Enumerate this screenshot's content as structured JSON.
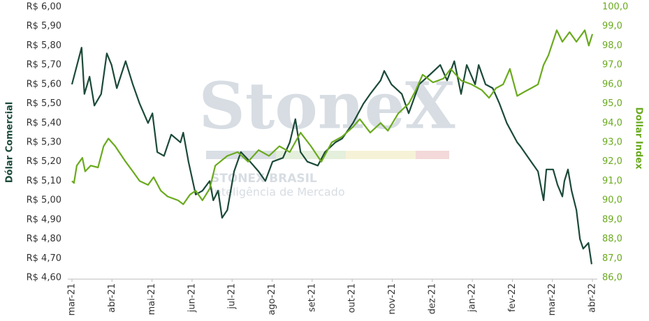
{
  "chart_data": {
    "type": "line",
    "watermark": {
      "logo": "StoneX",
      "brand": "STONEX BRASIL",
      "tagline": "Inteligência de Mercado"
    },
    "y_label": "Dólar Comercial",
    "y2_label": "Dollar Index",
    "xlim": [
      0,
      13
    ],
    "xticks": [
      {
        "value": 0,
        "label": "mar-21"
      },
      {
        "value": 1,
        "label": "abr-21"
      },
      {
        "value": 2,
        "label": "mai-21"
      },
      {
        "value": 3,
        "label": "jun-21"
      },
      {
        "value": 4,
        "label": "jul-21"
      },
      {
        "value": 5,
        "label": "ago-21"
      },
      {
        "value": 6,
        "label": "set-21"
      },
      {
        "value": 7,
        "label": "out-21"
      },
      {
        "value": 8,
        "label": "nov-21"
      },
      {
        "value": 9,
        "label": "dez-21"
      },
      {
        "value": 10,
        "label": "jan-22"
      },
      {
        "value": 11,
        "label": "fev-22"
      },
      {
        "value": 12,
        "label": "mar-22"
      },
      {
        "value": 13,
        "label": "abr-22"
      }
    ],
    "ylim": [
      4.6,
      6.0
    ],
    "yticks": [
      {
        "value": 4.6,
        "label": "R$ 4,60"
      },
      {
        "value": 4.7,
        "label": "R$ 4,70"
      },
      {
        "value": 4.8,
        "label": "R$ 4,80"
      },
      {
        "value": 4.9,
        "label": "R$ 4,90"
      },
      {
        "value": 5.0,
        "label": "R$ 5,00"
      },
      {
        "value": 5.1,
        "label": "R$ 5,10"
      },
      {
        "value": 5.2,
        "label": "R$ 5,20"
      },
      {
        "value": 5.3,
        "label": "R$ 5,30"
      },
      {
        "value": 5.4,
        "label": "R$ 5,40"
      },
      {
        "value": 5.5,
        "label": "R$ 5,50"
      },
      {
        "value": 5.6,
        "label": "R$ 5,60"
      },
      {
        "value": 5.7,
        "label": "R$ 5,70"
      },
      {
        "value": 5.8,
        "label": "R$ 5,80"
      },
      {
        "value": 5.9,
        "label": "R$ 5,90"
      },
      {
        "value": 6.0,
        "label": "R$ 6,00"
      }
    ],
    "y2lim": [
      86,
      100
    ],
    "y2ticks": [
      {
        "value": 86,
        "label": "86,0"
      },
      {
        "value": 87,
        "label": "87,0"
      },
      {
        "value": 88,
        "label": "88,0"
      },
      {
        "value": 89,
        "label": "89,0"
      },
      {
        "value": 90,
        "label": "90,0"
      },
      {
        "value": 91,
        "label": "91,0"
      },
      {
        "value": 92,
        "label": "92,0"
      },
      {
        "value": 93,
        "label": "93,0"
      },
      {
        "value": 94,
        "label": "94,0"
      },
      {
        "value": 95,
        "label": "95,0"
      },
      {
        "value": 96,
        "label": "96,0"
      },
      {
        "value": 97,
        "label": "97,0"
      },
      {
        "value": 98,
        "label": "98,0"
      },
      {
        "value": 99,
        "label": "99,0"
      },
      {
        "value": 100,
        "label": "100,0"
      }
    ],
    "series": [
      {
        "name": "Dólar Comercial",
        "color": "#1b4a38",
        "axis": "y",
        "x": [
          0,
          0.24,
          0.31,
          0.44,
          0.56,
          0.73,
          0.87,
          0.99,
          1.12,
          1.34,
          1.52,
          1.69,
          1.9,
          2.01,
          2.13,
          2.3,
          2.48,
          2.71,
          2.78,
          2.91,
          3.09,
          3.26,
          3.44,
          3.53,
          3.65,
          3.75,
          3.88,
          4.05,
          4.22,
          4.45,
          4.66,
          4.83,
          5.01,
          5.27,
          5.44,
          5.58,
          5.71,
          5.88,
          6.14,
          6.32,
          6.58,
          6.75,
          7.02,
          7.28,
          7.45,
          7.71,
          7.8,
          7.98,
          8.24,
          8.41,
          8.67,
          8.94,
          9.2,
          9.37,
          9.55,
          9.72,
          9.86,
          10.07,
          10.16,
          10.33,
          10.51,
          10.68,
          10.86,
          11.12,
          11.2,
          11.47,
          11.64,
          11.78,
          11.85,
          12.02,
          12.13,
          12.25,
          12.3,
          12.39,
          12.48,
          12.6,
          12.69,
          12.77,
          12.9,
          12.98
        ],
        "values": [
          5.6,
          5.79,
          5.55,
          5.64,
          5.49,
          5.55,
          5.76,
          5.7,
          5.58,
          5.72,
          5.6,
          5.5,
          5.4,
          5.45,
          5.25,
          5.23,
          5.34,
          5.3,
          5.35,
          5.2,
          5.03,
          5.05,
          5.1,
          5.0,
          5.05,
          4.91,
          4.95,
          5.15,
          5.25,
          5.2,
          5.15,
          5.1,
          5.2,
          5.22,
          5.3,
          5.42,
          5.25,
          5.2,
          5.18,
          5.25,
          5.3,
          5.32,
          5.4,
          5.5,
          5.55,
          5.62,
          5.67,
          5.6,
          5.55,
          5.45,
          5.6,
          5.65,
          5.7,
          5.62,
          5.72,
          5.55,
          5.7,
          5.6,
          5.7,
          5.6,
          5.58,
          5.5,
          5.4,
          5.3,
          5.28,
          5.2,
          5.15,
          5.0,
          5.16,
          5.16,
          5.08,
          5.02,
          5.1,
          5.16,
          5.05,
          4.95,
          4.8,
          4.75,
          4.78,
          4.67
        ]
      },
      {
        "name": "Dollar Index",
        "color": "#6aaa1e",
        "axis": "y2",
        "x": [
          0,
          0.05,
          0.12,
          0.26,
          0.33,
          0.47,
          0.65,
          0.79,
          0.91,
          1.08,
          1.34,
          1.52,
          1.69,
          1.9,
          2.04,
          2.22,
          2.39,
          2.65,
          2.78,
          2.95,
          3.09,
          3.26,
          3.44,
          3.58,
          3.88,
          4.14,
          4.4,
          4.66,
          4.92,
          5.18,
          5.44,
          5.71,
          5.97,
          6.23,
          6.49,
          6.75,
          7.02,
          7.19,
          7.45,
          7.71,
          7.89,
          8.15,
          8.41,
          8.59,
          8.76,
          9.02,
          9.28,
          9.46,
          9.72,
          9.98,
          10.24,
          10.42,
          10.59,
          10.77,
          10.94,
          11.12,
          11.29,
          11.47,
          11.64,
          11.78,
          11.9,
          12.11,
          12.25,
          12.43,
          12.6,
          12.81,
          12.91,
          13.0
        ],
        "values": [
          91.0,
          90.9,
          91.8,
          92.2,
          91.5,
          91.8,
          91.7,
          92.8,
          93.2,
          92.8,
          92.0,
          91.5,
          91.0,
          90.8,
          91.2,
          90.5,
          90.2,
          90.0,
          89.8,
          90.3,
          90.5,
          90.0,
          90.6,
          91.8,
          92.3,
          92.5,
          92.0,
          92.6,
          92.3,
          92.8,
          92.5,
          93.5,
          92.8,
          92.0,
          93.0,
          93.3,
          93.8,
          94.2,
          93.5,
          94.0,
          93.6,
          94.5,
          95.0,
          95.7,
          96.5,
          96.1,
          96.3,
          96.8,
          96.2,
          96.0,
          95.7,
          95.3,
          95.8,
          96.0,
          96.8,
          95.4,
          95.6,
          95.8,
          96.0,
          97.0,
          97.5,
          98.8,
          98.2,
          98.7,
          98.2,
          98.8,
          98.0,
          98.6
        ]
      }
    ]
  }
}
